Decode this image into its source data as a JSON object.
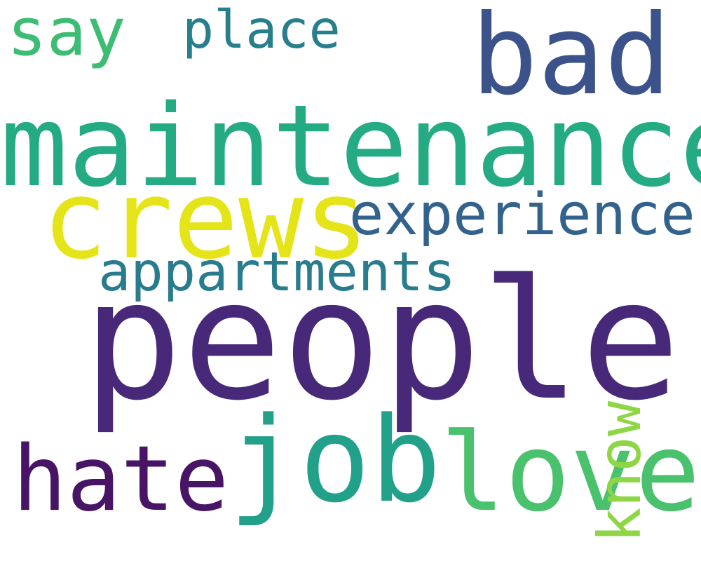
{
  "words": {
    "maintenance": {
      "text": "maintenance",
      "color": "#24ab84"
    },
    "people": {
      "text": "people",
      "color": "#482878"
    },
    "bad": {
      "text": "bad",
      "color": "#3b528b"
    },
    "crews": {
      "text": "crews",
      "color": "#e5e419"
    },
    "job": {
      "text": "job",
      "color": "#21a08a"
    },
    "love": {
      "text": "love",
      "color": "#4ac16d"
    },
    "hate": {
      "text": "hate",
      "color": "#471466"
    },
    "experience": {
      "text": "experience",
      "color": "#33638d"
    },
    "appartments": {
      "text": "appartments",
      "color": "#287c8e"
    },
    "say": {
      "text": "say",
      "color": "#3dbc74"
    },
    "place": {
      "text": "place",
      "color": "#277f8e"
    },
    "know": {
      "text": "know",
      "color": "#8ed645"
    }
  }
}
